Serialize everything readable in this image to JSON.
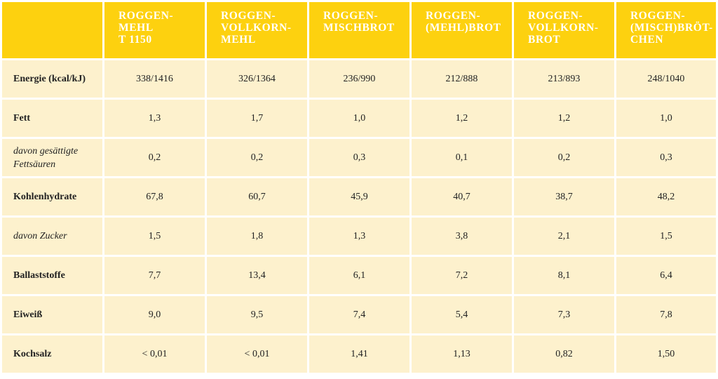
{
  "columns": [
    "",
    "ROGGEN-\nMEHL\nT 1150",
    "ROGGEN-\nVOLLKORN-\nMEHL",
    "ROGGEN-\nMISCHBROT",
    "ROGGEN-\n(MEHL)BROT",
    "ROGGEN-\nVOLLKORN-\nBROT",
    "ROGGEN-\n(MISCH)BRÖT-\nCHEN"
  ],
  "rows": [
    {
      "label": "Energie (kcal/kJ)",
      "sub": false,
      "values": [
        "338/1416",
        "326/1364",
        "236/990",
        "212/888",
        "213/893",
        "248/1040"
      ]
    },
    {
      "label": "Fett",
      "sub": false,
      "values": [
        "1,3",
        "1,7",
        "1,0",
        "1,2",
        "1,2",
        "1,0"
      ]
    },
    {
      "label": "davon gesättigte Fettsäuren",
      "sub": true,
      "values": [
        "0,2",
        "0,2",
        "0,3",
        "0,1",
        "0,2",
        "0,3"
      ]
    },
    {
      "label": "Kohlenhydrate",
      "sub": false,
      "values": [
        "67,8",
        "60,7",
        "45,9",
        "40,7",
        "38,7",
        "48,2"
      ]
    },
    {
      "label": "davon Zucker",
      "sub": true,
      "values": [
        "1,5",
        "1,8",
        "1,3",
        "3,8",
        "2,1",
        "1,5"
      ]
    },
    {
      "label": "Ballaststoffe",
      "sub": false,
      "values": [
        "7,7",
        "13,4",
        "6,1",
        "7,2",
        "8,1",
        "6,4"
      ]
    },
    {
      "label": "Eiweiß",
      "sub": false,
      "values": [
        "9,0",
        "9,5",
        "7,4",
        "5,4",
        "7,3",
        "7,8"
      ]
    },
    {
      "label": "Kochsalz",
      "sub": false,
      "values": [
        "< 0,01",
        "< 0,01",
        "1,41",
        "1,13",
        "0,82",
        "1,50"
      ]
    }
  ],
  "colors": {
    "header": "#fdd10f",
    "row": "#fdf1cd",
    "header_text": "#ffffff"
  }
}
